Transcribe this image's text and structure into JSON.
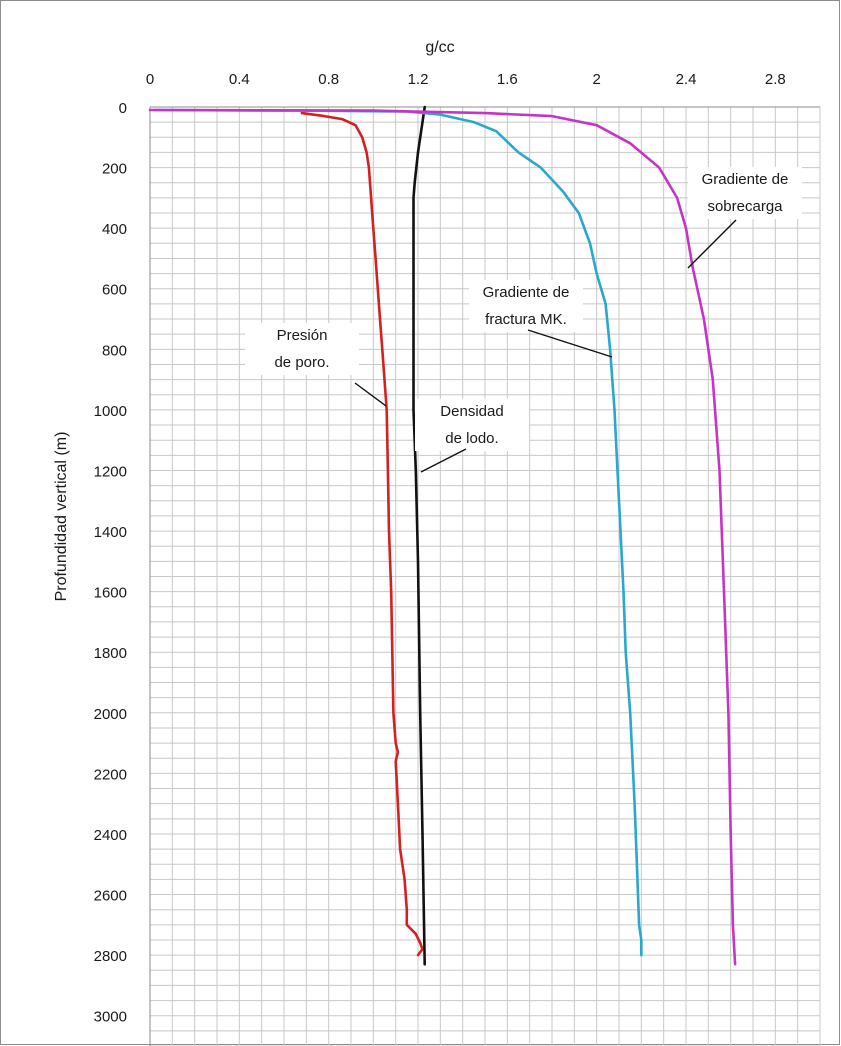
{
  "chart_data": {
    "type": "line",
    "title": "",
    "xlabel": "g/cc",
    "ylabel": "Profundidad vertical (m)",
    "xlim": [
      0,
      3.0
    ],
    "ylim": [
      0,
      3100
    ],
    "x_ticks": [
      0,
      0.4,
      0.8,
      1.2,
      1.6,
      2,
      2.4,
      2.8
    ],
    "x_tick_labels": [
      "0",
      "0.4",
      "0.8",
      "1.2",
      "1.6",
      "2",
      "2.4",
      "2.8"
    ],
    "y_ticks": [
      0,
      200,
      400,
      600,
      800,
      1000,
      1200,
      1400,
      1600,
      1800,
      2000,
      2200,
      2400,
      2600,
      2800,
      3000
    ],
    "y_tick_labels": [
      "0",
      "200",
      "400",
      "600",
      "800",
      "1000",
      "1200",
      "1400",
      "1600",
      "1800",
      "2000",
      "2200",
      "2400",
      "2600",
      "2800",
      "3000"
    ],
    "x_axis_position": "top",
    "y_axis_inverted": true,
    "grid": true,
    "grid_minor_x": 0.1,
    "grid_minor_y": 50,
    "colors": {
      "pore": "#d42020",
      "mud": "#111111",
      "fracture": "#29a8cc",
      "overburden": "#c634c6",
      "grid": "#c8c8c8",
      "frame": "#8c8c8c"
    },
    "series": [
      {
        "key": "pore",
        "points": [
          [
            0.68,
            20
          ],
          [
            0.78,
            30
          ],
          [
            0.86,
            40
          ],
          [
            0.92,
            60
          ],
          [
            0.95,
            100
          ],
          [
            0.97,
            150
          ],
          [
            0.98,
            200
          ],
          [
            0.99,
            300
          ],
          [
            1.0,
            400
          ],
          [
            1.01,
            500
          ],
          [
            1.02,
            600
          ],
          [
            1.03,
            700
          ],
          [
            1.04,
            800
          ],
          [
            1.05,
            900
          ],
          [
            1.06,
            1000
          ],
          [
            1.065,
            1200
          ],
          [
            1.07,
            1400
          ],
          [
            1.08,
            1600
          ],
          [
            1.085,
            1800
          ],
          [
            1.09,
            2000
          ],
          [
            1.1,
            2100
          ],
          [
            1.11,
            2130
          ],
          [
            1.1,
            2160
          ],
          [
            1.11,
            2300
          ],
          [
            1.12,
            2450
          ],
          [
            1.14,
            2550
          ],
          [
            1.15,
            2650
          ],
          [
            1.15,
            2700
          ],
          [
            1.19,
            2730
          ],
          [
            1.21,
            2760
          ],
          [
            1.22,
            2780
          ],
          [
            1.2,
            2800
          ]
        ]
      },
      {
        "key": "mud",
        "points": [
          [
            1.23,
            0
          ],
          [
            1.22,
            50
          ],
          [
            1.2,
            150
          ],
          [
            1.185,
            250
          ],
          [
            1.18,
            300
          ],
          [
            1.18,
            500
          ],
          [
            1.18,
            1000
          ],
          [
            1.19,
            1200
          ],
          [
            1.2,
            1500
          ],
          [
            1.21,
            2000
          ],
          [
            1.22,
            2400
          ],
          [
            1.23,
            2830
          ]
        ]
      },
      {
        "key": "fracture",
        "points": [
          [
            0.02,
            10
          ],
          [
            0.7,
            12
          ],
          [
            1.15,
            15
          ],
          [
            1.3,
            25
          ],
          [
            1.45,
            50
          ],
          [
            1.55,
            80
          ],
          [
            1.65,
            150
          ],
          [
            1.75,
            200
          ],
          [
            1.85,
            280
          ],
          [
            1.92,
            350
          ],
          [
            1.97,
            450
          ],
          [
            2.0,
            550
          ],
          [
            2.04,
            650
          ],
          [
            2.06,
            800
          ],
          [
            2.08,
            1000
          ],
          [
            2.1,
            1300
          ],
          [
            2.12,
            1600
          ],
          [
            2.13,
            1800
          ],
          [
            2.15,
            2000
          ],
          [
            2.17,
            2300
          ],
          [
            2.18,
            2500
          ],
          [
            2.19,
            2700
          ],
          [
            2.2,
            2750
          ],
          [
            2.2,
            2800
          ]
        ]
      },
      {
        "key": "overburden",
        "points": [
          [
            0.0,
            10
          ],
          [
            1.0,
            12
          ],
          [
            1.5,
            20
          ],
          [
            1.8,
            30
          ],
          [
            2.0,
            60
          ],
          [
            2.15,
            120
          ],
          [
            2.28,
            200
          ],
          [
            2.36,
            300
          ],
          [
            2.4,
            400
          ],
          [
            2.43,
            530
          ],
          [
            2.48,
            700
          ],
          [
            2.52,
            900
          ],
          [
            2.55,
            1200
          ],
          [
            2.57,
            1600
          ],
          [
            2.59,
            2000
          ],
          [
            2.6,
            2400
          ],
          [
            2.61,
            2700
          ],
          [
            2.62,
            2830
          ]
        ]
      }
    ],
    "annotations": [
      {
        "key": "pore",
        "lines": [
          "Presión",
          "de poro."
        ]
      },
      {
        "key": "mud",
        "lines": [
          "Densidad",
          "de lodo."
        ]
      },
      {
        "key": "fracture",
        "lines": [
          "Gradiente de",
          "fractura MK."
        ]
      },
      {
        "key": "overburden",
        "lines": [
          "Gradiente de",
          "sobrecarga"
        ]
      }
    ]
  }
}
